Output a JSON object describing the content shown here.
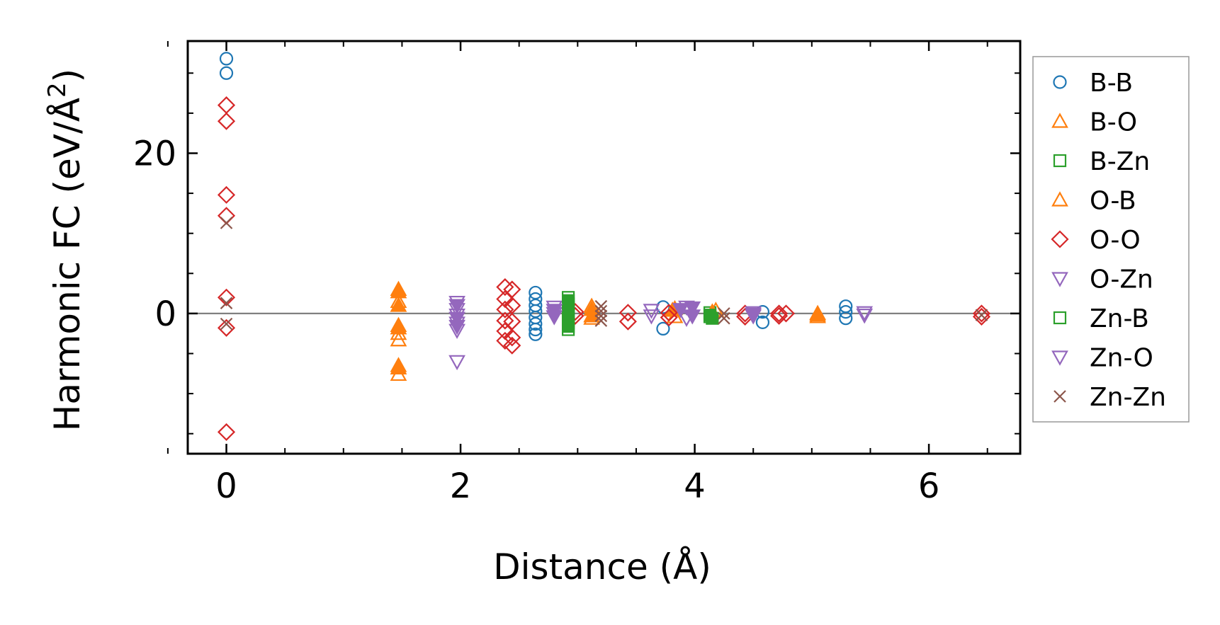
{
  "chart_data": {
    "type": "scatter",
    "title": "",
    "xlabel": "Distance (Å)",
    "ylabel_main": "Harmonic FC (eV/Å",
    "ylabel_sup": "2",
    "ylabel_close": ")",
    "xlim": [
      -0.33,
      6.78
    ],
    "ylim": [
      -17.5,
      34
    ],
    "x_ticks": [
      0,
      2,
      4,
      6
    ],
    "x_tick_labels": [
      "0",
      "2",
      "4",
      "6"
    ],
    "x_minor_ticks": [
      -0.5,
      0.5,
      1,
      1.5,
      2.5,
      3,
      3.5,
      4.5,
      5,
      5.5,
      6.5
    ],
    "y_ticks": [
      0,
      20
    ],
    "y_tick_labels": [
      "0",
      "20"
    ],
    "y_minor_ticks": [
      -15,
      -10,
      -5,
      5,
      10,
      15,
      25,
      30
    ],
    "zero_line": true,
    "grid": false,
    "legend_position": "outside-right",
    "series": [
      {
        "name": "B-B",
        "marker": "circle",
        "filled": false,
        "color": "#1f77b4",
        "points": [
          [
            0,
            31.8
          ],
          [
            0,
            30
          ],
          [
            2.64,
            2.6
          ],
          [
            2.64,
            1.8
          ],
          [
            2.64,
            1.0
          ],
          [
            2.64,
            0.3
          ],
          [
            2.64,
            -0.5
          ],
          [
            2.64,
            -1.3
          ],
          [
            2.64,
            -2.0
          ],
          [
            2.64,
            -2.6
          ],
          [
            3.73,
            0.8
          ],
          [
            3.73,
            -1.9
          ],
          [
            4.58,
            0.2
          ],
          [
            4.58,
            -1.1
          ],
          [
            5.29,
            0.9
          ],
          [
            5.29,
            0.2
          ],
          [
            5.29,
            -0.6
          ]
        ]
      },
      {
        "name": "B-O",
        "marker": "triangle-up",
        "filled": false,
        "color": "#ff7f0e",
        "points": [
          [
            1.47,
            3.0
          ],
          [
            1.47,
            1.5
          ],
          [
            1.47,
            -1.5
          ],
          [
            1.47,
            -2.5
          ],
          [
            1.47,
            -3.3
          ],
          [
            1.47,
            -6.5
          ],
          [
            1.47,
            -7.6
          ],
          [
            3.12,
            0.9
          ],
          [
            3.12,
            -0.6
          ],
          [
            3.83,
            0.6
          ],
          [
            3.83,
            -0.4
          ],
          [
            4.18,
            0.4
          ],
          [
            5.05,
            0
          ],
          [
            5.05,
            -0.4
          ]
        ]
      },
      {
        "name": "B-Zn",
        "marker": "square",
        "filled": false,
        "color": "#2ca02c",
        "points": [
          [
            2.92,
            2.0
          ],
          [
            2.92,
            1.2
          ],
          [
            2.92,
            0.4
          ],
          [
            2.92,
            -0.4
          ],
          [
            2.92,
            -1.2
          ],
          [
            2.92,
            -2.0
          ],
          [
            4.13,
            0.1
          ],
          [
            4.13,
            -0.4
          ]
        ]
      },
      {
        "name": "O-B",
        "marker": "triangle-up",
        "filled": true,
        "color": "#ff7f0e",
        "points": [
          [
            1.47,
            2.7
          ],
          [
            1.47,
            1.0
          ],
          [
            1.47,
            -1.8
          ],
          [
            1.47,
            -6.8
          ],
          [
            3.12,
            0.5
          ],
          [
            3.12,
            -0.3
          ],
          [
            3.81,
            0.4
          ],
          [
            4.15,
            0.2
          ],
          [
            5.05,
            -0.2
          ]
        ]
      },
      {
        "name": "O-O",
        "marker": "diamond",
        "filled": false,
        "color": "#d62728",
        "points": [
          [
            0,
            26
          ],
          [
            0,
            24
          ],
          [
            0,
            14.8
          ],
          [
            0,
            12.2
          ],
          [
            0,
            2.0
          ],
          [
            0,
            -1.8
          ],
          [
            0,
            -14.8
          ],
          [
            2.38,
            3.3
          ],
          [
            2.38,
            1.8
          ],
          [
            2.38,
            0.5
          ],
          [
            2.38,
            -0.9
          ],
          [
            2.38,
            -2.2
          ],
          [
            2.38,
            -3.4
          ],
          [
            2.44,
            3.0
          ],
          [
            2.44,
            1.0
          ],
          [
            2.44,
            -1.0
          ],
          [
            2.44,
            -3.0
          ],
          [
            2.44,
            -4.0
          ],
          [
            2.98,
            0.2
          ],
          [
            2.98,
            -0.3
          ],
          [
            3.43,
            0.1
          ],
          [
            3.43,
            -1.0
          ],
          [
            3.78,
            0.1
          ],
          [
            3.78,
            -0.5
          ],
          [
            4.43,
            0
          ],
          [
            4.43,
            -0.4
          ],
          [
            4.72,
            0
          ],
          [
            4.72,
            -0.3
          ],
          [
            4.78,
            0
          ],
          [
            6.45,
            0
          ],
          [
            6.45,
            -0.4
          ]
        ]
      },
      {
        "name": "O-Zn",
        "marker": "triangle-down",
        "filled": false,
        "color": "#9467bd",
        "points": [
          [
            1.97,
            1.4
          ],
          [
            1.97,
            0.5
          ],
          [
            1.97,
            -0.2
          ],
          [
            1.97,
            -1.2
          ],
          [
            1.97,
            -2.1
          ],
          [
            1.97,
            -6.0
          ],
          [
            2.8,
            0.8
          ],
          [
            2.8,
            0
          ],
          [
            3.63,
            0.4
          ],
          [
            3.63,
            -0.3
          ],
          [
            3.93,
            0.8
          ],
          [
            3.93,
            -0.6
          ],
          [
            4.5,
            0.1
          ],
          [
            4.5,
            -0.3
          ],
          [
            5.45,
            0.1
          ],
          [
            5.45,
            -0.2
          ]
        ]
      },
      {
        "name": "Zn-B",
        "marker": "square",
        "filled": true,
        "color": "#2ca02c",
        "points": [
          [
            2.92,
            1.6
          ],
          [
            2.92,
            0.8
          ],
          [
            2.92,
            0
          ],
          [
            2.92,
            -0.8
          ],
          [
            2.92,
            -1.6
          ],
          [
            4.13,
            -0.2
          ],
          [
            4.15,
            -0.6
          ]
        ]
      },
      {
        "name": "Zn-O",
        "marker": "triangle-down",
        "filled": true,
        "color": "#9467bd",
        "points": [
          [
            1.97,
            1.0
          ],
          [
            1.97,
            -0.6
          ],
          [
            1.97,
            -1.6
          ],
          [
            2.8,
            0.4
          ],
          [
            2.8,
            -0.4
          ],
          [
            3.88,
            0.5
          ],
          [
            3.98,
            0.7
          ],
          [
            3.98,
            -0.3
          ],
          [
            4.5,
            -0.1
          ]
        ]
      },
      {
        "name": "Zn-Zn",
        "marker": "x",
        "filled": false,
        "color": "#8c564b",
        "points": [
          [
            0,
            11.3
          ],
          [
            0,
            1.3
          ],
          [
            0,
            -1.3
          ],
          [
            3.2,
            0.9
          ],
          [
            3.2,
            0.3
          ],
          [
            3.2,
            -0.3
          ],
          [
            3.2,
            -0.9
          ],
          [
            4.25,
            0
          ],
          [
            4.25,
            -0.6
          ],
          [
            6.45,
            -0.2
          ]
        ]
      }
    ]
  }
}
